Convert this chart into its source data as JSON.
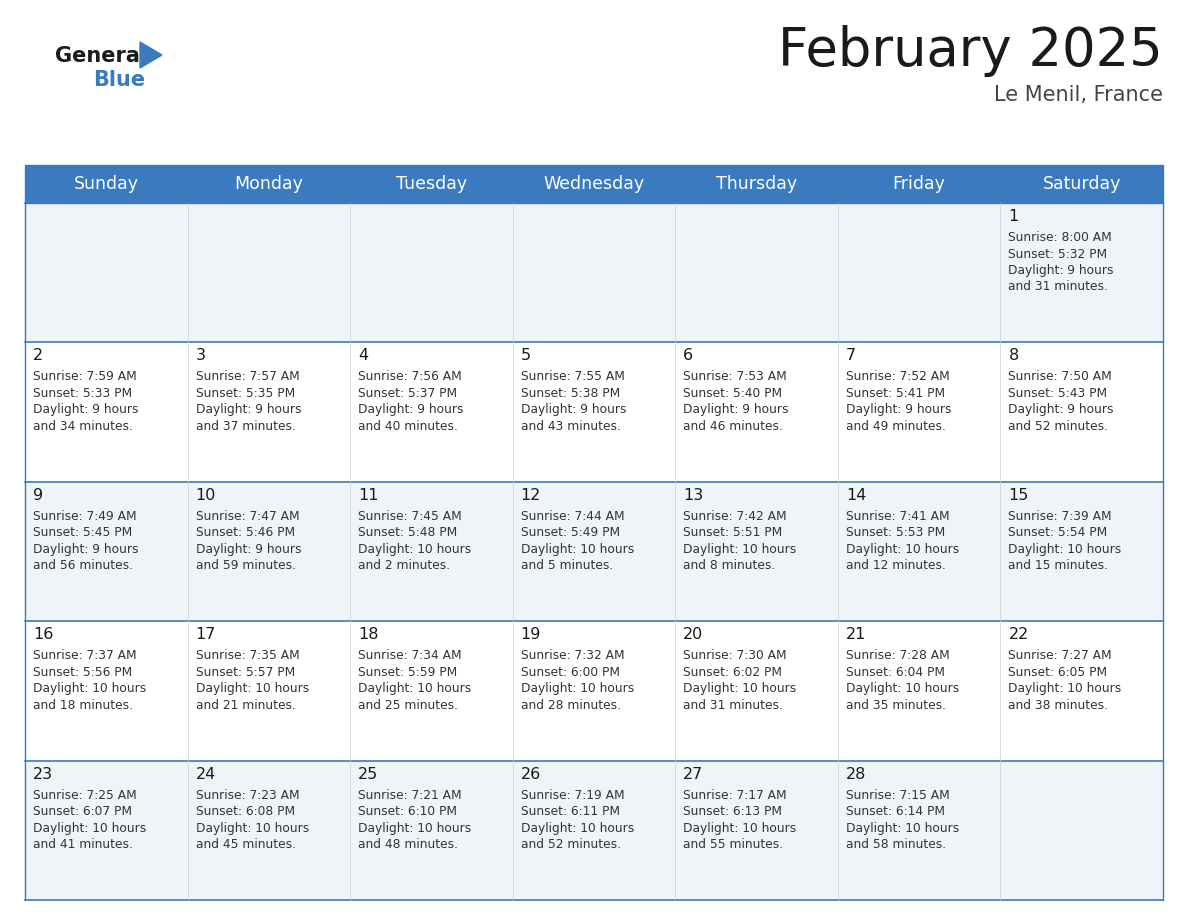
{
  "title": "February 2025",
  "subtitle": "Le Menil, France",
  "header_bg_color": "#3a7bbf",
  "header_text_color": "#ffffff",
  "weekdays": [
    "Sunday",
    "Monday",
    "Tuesday",
    "Wednesday",
    "Thursday",
    "Friday",
    "Saturday"
  ],
  "bg_color": "#ffffff",
  "cell_bg_even": "#f0f4f8",
  "cell_bg_odd": "#ffffff",
  "day_number_color": "#1a1a1a",
  "info_text_color": "#333333",
  "title_color": "#1a1a1a",
  "subtitle_color": "#444444",
  "days": [
    {
      "day": 1,
      "col": 6,
      "row": 0,
      "sunrise": "8:00 AM",
      "sunset": "5:32 PM",
      "daylight_h": "9 hours",
      "daylight_m": "31 minutes."
    },
    {
      "day": 2,
      "col": 0,
      "row": 1,
      "sunrise": "7:59 AM",
      "sunset": "5:33 PM",
      "daylight_h": "9 hours",
      "daylight_m": "34 minutes."
    },
    {
      "day": 3,
      "col": 1,
      "row": 1,
      "sunrise": "7:57 AM",
      "sunset": "5:35 PM",
      "daylight_h": "9 hours",
      "daylight_m": "37 minutes."
    },
    {
      "day": 4,
      "col": 2,
      "row": 1,
      "sunrise": "7:56 AM",
      "sunset": "5:37 PM",
      "daylight_h": "9 hours",
      "daylight_m": "40 minutes."
    },
    {
      "day": 5,
      "col": 3,
      "row": 1,
      "sunrise": "7:55 AM",
      "sunset": "5:38 PM",
      "daylight_h": "9 hours",
      "daylight_m": "43 minutes."
    },
    {
      "day": 6,
      "col": 4,
      "row": 1,
      "sunrise": "7:53 AM",
      "sunset": "5:40 PM",
      "daylight_h": "9 hours",
      "daylight_m": "46 minutes."
    },
    {
      "day": 7,
      "col": 5,
      "row": 1,
      "sunrise": "7:52 AM",
      "sunset": "5:41 PM",
      "daylight_h": "9 hours",
      "daylight_m": "49 minutes."
    },
    {
      "day": 8,
      "col": 6,
      "row": 1,
      "sunrise": "7:50 AM",
      "sunset": "5:43 PM",
      "daylight_h": "9 hours",
      "daylight_m": "52 minutes."
    },
    {
      "day": 9,
      "col": 0,
      "row": 2,
      "sunrise": "7:49 AM",
      "sunset": "5:45 PM",
      "daylight_h": "9 hours",
      "daylight_m": "56 minutes."
    },
    {
      "day": 10,
      "col": 1,
      "row": 2,
      "sunrise": "7:47 AM",
      "sunset": "5:46 PM",
      "daylight_h": "9 hours",
      "daylight_m": "59 minutes."
    },
    {
      "day": 11,
      "col": 2,
      "row": 2,
      "sunrise": "7:45 AM",
      "sunset": "5:48 PM",
      "daylight_h": "10 hours",
      "daylight_m": "2 minutes."
    },
    {
      "day": 12,
      "col": 3,
      "row": 2,
      "sunrise": "7:44 AM",
      "sunset": "5:49 PM",
      "daylight_h": "10 hours",
      "daylight_m": "5 minutes."
    },
    {
      "day": 13,
      "col": 4,
      "row": 2,
      "sunrise": "7:42 AM",
      "sunset": "5:51 PM",
      "daylight_h": "10 hours",
      "daylight_m": "8 minutes."
    },
    {
      "day": 14,
      "col": 5,
      "row": 2,
      "sunrise": "7:41 AM",
      "sunset": "5:53 PM",
      "daylight_h": "10 hours",
      "daylight_m": "12 minutes."
    },
    {
      "day": 15,
      "col": 6,
      "row": 2,
      "sunrise": "7:39 AM",
      "sunset": "5:54 PM",
      "daylight_h": "10 hours",
      "daylight_m": "15 minutes."
    },
    {
      "day": 16,
      "col": 0,
      "row": 3,
      "sunrise": "7:37 AM",
      "sunset": "5:56 PM",
      "daylight_h": "10 hours",
      "daylight_m": "18 minutes."
    },
    {
      "day": 17,
      "col": 1,
      "row": 3,
      "sunrise": "7:35 AM",
      "sunset": "5:57 PM",
      "daylight_h": "10 hours",
      "daylight_m": "21 minutes."
    },
    {
      "day": 18,
      "col": 2,
      "row": 3,
      "sunrise": "7:34 AM",
      "sunset": "5:59 PM",
      "daylight_h": "10 hours",
      "daylight_m": "25 minutes."
    },
    {
      "day": 19,
      "col": 3,
      "row": 3,
      "sunrise": "7:32 AM",
      "sunset": "6:00 PM",
      "daylight_h": "10 hours",
      "daylight_m": "28 minutes."
    },
    {
      "day": 20,
      "col": 4,
      "row": 3,
      "sunrise": "7:30 AM",
      "sunset": "6:02 PM",
      "daylight_h": "10 hours",
      "daylight_m": "31 minutes."
    },
    {
      "day": 21,
      "col": 5,
      "row": 3,
      "sunrise": "7:28 AM",
      "sunset": "6:04 PM",
      "daylight_h": "10 hours",
      "daylight_m": "35 minutes."
    },
    {
      "day": 22,
      "col": 6,
      "row": 3,
      "sunrise": "7:27 AM",
      "sunset": "6:05 PM",
      "daylight_h": "10 hours",
      "daylight_m": "38 minutes."
    },
    {
      "day": 23,
      "col": 0,
      "row": 4,
      "sunrise": "7:25 AM",
      "sunset": "6:07 PM",
      "daylight_h": "10 hours",
      "daylight_m": "41 minutes."
    },
    {
      "day": 24,
      "col": 1,
      "row": 4,
      "sunrise": "7:23 AM",
      "sunset": "6:08 PM",
      "daylight_h": "10 hours",
      "daylight_m": "45 minutes."
    },
    {
      "day": 25,
      "col": 2,
      "row": 4,
      "sunrise": "7:21 AM",
      "sunset": "6:10 PM",
      "daylight_h": "10 hours",
      "daylight_m": "48 minutes."
    },
    {
      "day": 26,
      "col": 3,
      "row": 4,
      "sunrise": "7:19 AM",
      "sunset": "6:11 PM",
      "daylight_h": "10 hours",
      "daylight_m": "52 minutes."
    },
    {
      "day": 27,
      "col": 4,
      "row": 4,
      "sunrise": "7:17 AM",
      "sunset": "6:13 PM",
      "daylight_h": "10 hours",
      "daylight_m": "55 minutes."
    },
    {
      "day": 28,
      "col": 5,
      "row": 4,
      "sunrise": "7:15 AM",
      "sunset": "6:14 PM",
      "daylight_h": "10 hours",
      "daylight_m": "58 minutes."
    }
  ]
}
